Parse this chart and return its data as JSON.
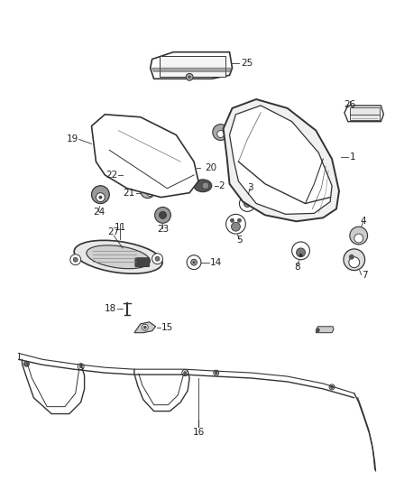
{
  "bg_color": "#ffffff",
  "line_color": "#333333",
  "label_color": "#222222",
  "font_size": 7.5,
  "figsize": [
    4.38,
    5.33
  ],
  "dpi": 100
}
